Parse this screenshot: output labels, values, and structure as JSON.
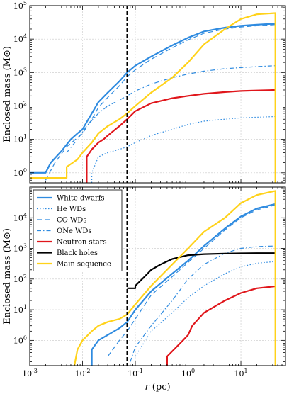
{
  "chart_data": [
    {
      "panel": "top",
      "type": "line",
      "xscale": "log",
      "yscale": "log",
      "xlim": [
        0.001,
        70
      ],
      "ylim": [
        0.5,
        100000
      ],
      "ylabel": "Enclosed mass (M⊙)",
      "xlabel": "",
      "grid": true,
      "legend": "none",
      "vline_x": 0.07,
      "yticks": [
        {
          "value": 1,
          "label": "10^0"
        },
        {
          "value": 10,
          "label": "10^1"
        },
        {
          "value": 100,
          "label": "10^2"
        },
        {
          "value": 1000,
          "label": "10^3"
        },
        {
          "value": 10000,
          "label": "10^4"
        },
        {
          "value": 100000,
          "label": "10^5"
        }
      ],
      "series": [
        {
          "id": "wd",
          "color": "#2f8be0",
          "dash": "solid",
          "width": 2.2,
          "drop": false,
          "points": [
            [
              0.001,
              1.0
            ],
            [
              0.002,
              1.0
            ],
            [
              0.0025,
              2.0
            ],
            [
              0.004,
              4.5
            ],
            [
              0.006,
              10
            ],
            [
              0.008,
              15
            ],
            [
              0.01,
              20
            ],
            [
              0.015,
              60
            ],
            [
              0.02,
              130
            ],
            [
              0.03,
              250
            ],
            [
              0.05,
              550
            ],
            [
              0.07,
              1000
            ],
            [
              0.1,
              1600
            ],
            [
              0.2,
              3000
            ],
            [
              0.5,
              6500
            ],
            [
              1,
              11000
            ],
            [
              2,
              17000
            ],
            [
              5,
              22000
            ],
            [
              10,
              25000
            ],
            [
              20,
              27000
            ],
            [
              45,
              29000
            ]
          ]
        },
        {
          "id": "co",
          "color": "#2f8be0",
          "dash": "7,4",
          "width": 1.2,
          "drop": false,
          "points": [
            [
              0.002,
              0.6
            ],
            [
              0.003,
              2.0
            ],
            [
              0.005,
              6
            ],
            [
              0.01,
              15
            ],
            [
              0.015,
              40
            ],
            [
              0.02,
              90
            ],
            [
              0.03,
              180
            ],
            [
              0.05,
              400
            ],
            [
              0.07,
              750
            ],
            [
              0.1,
              1200
            ],
            [
              0.2,
              2500
            ],
            [
              0.5,
              5500
            ],
            [
              1,
              9500
            ],
            [
              2,
              15000
            ],
            [
              5,
              20000
            ],
            [
              10,
              23000
            ],
            [
              20,
              25000
            ],
            [
              45,
              27000
            ]
          ]
        },
        {
          "id": "one",
          "color": "#2f8be0",
          "dash": "6,3,1.5,3",
          "width": 1.2,
          "drop": false,
          "points": [
            [
              0.005,
              4
            ],
            [
              0.008,
              10
            ],
            [
              0.012,
              25
            ],
            [
              0.02,
              60
            ],
            [
              0.03,
              100
            ],
            [
              0.05,
              150
            ],
            [
              0.07,
              200
            ],
            [
              0.1,
              280
            ],
            [
              0.2,
              450
            ],
            [
              0.5,
              700
            ],
            [
              1,
              900
            ],
            [
              2,
              1100
            ],
            [
              5,
              1300
            ],
            [
              10,
              1400
            ],
            [
              20,
              1500
            ],
            [
              45,
              1600
            ]
          ]
        },
        {
          "id": "he",
          "color": "#2f8be0",
          "dash": "1.5,2.5",
          "width": 1.2,
          "drop": false,
          "points": [
            [
              0.015,
              0.5
            ],
            [
              0.015,
              1
            ],
            [
              0.02,
              3
            ],
            [
              0.03,
              4
            ],
            [
              0.05,
              5
            ],
            [
              0.07,
              6
            ],
            [
              0.1,
              8
            ],
            [
              0.2,
              13
            ],
            [
              0.5,
              20
            ],
            [
              1,
              28
            ],
            [
              2,
              35
            ],
            [
              5,
              40
            ],
            [
              10,
              44
            ],
            [
              20,
              46
            ],
            [
              45,
              48
            ]
          ]
        },
        {
          "id": "ns",
          "color": "#e0161b",
          "dash": "solid",
          "width": 2.2,
          "drop": false,
          "points": [
            [
              0.012,
              0.5
            ],
            [
              0.012,
              3
            ],
            [
              0.015,
              5
            ],
            [
              0.02,
              8
            ],
            [
              0.025,
              10
            ],
            [
              0.03,
              13
            ],
            [
              0.05,
              25
            ],
            [
              0.07,
              40
            ],
            [
              0.1,
              70
            ],
            [
              0.2,
              120
            ],
            [
              0.5,
              170
            ],
            [
              1,
              200
            ],
            [
              2,
              230
            ],
            [
              5,
              260
            ],
            [
              10,
              280
            ],
            [
              20,
              290
            ],
            [
              45,
              300
            ]
          ]
        },
        {
          "id": "ms",
          "color": "#ffd21a",
          "dash": "solid",
          "width": 2.2,
          "drop": true,
          "points": [
            [
              0.001,
              0.7
            ],
            [
              0.005,
              0.7
            ],
            [
              0.005,
              1.5
            ],
            [
              0.008,
              2.5
            ],
            [
              0.01,
              4
            ],
            [
              0.015,
              8
            ],
            [
              0.02,
              15
            ],
            [
              0.03,
              25
            ],
            [
              0.05,
              40
            ],
            [
              0.07,
              60
            ],
            [
              0.1,
              100
            ],
            [
              0.2,
              250
            ],
            [
              0.5,
              700
            ],
            [
              1,
              2000
            ],
            [
              2,
              7000
            ],
            [
              5,
              20000
            ],
            [
              10,
              40000
            ],
            [
              20,
              55000
            ],
            [
              45,
              60000
            ]
          ]
        }
      ]
    },
    {
      "panel": "bottom",
      "type": "line",
      "xscale": "log",
      "yscale": "log",
      "xlim": [
        0.001,
        70
      ],
      "ylim": [
        0.15,
        100000
      ],
      "ylabel": "Enclosed mass (M⊙)",
      "xlabel": "r (pc)",
      "grid": true,
      "legend": "top-left",
      "vline_x": 0.07,
      "yticks": [
        {
          "value": 1,
          "label": "10^0"
        },
        {
          "value": 10,
          "label": "10^1"
        },
        {
          "value": 100,
          "label": "10^2"
        },
        {
          "value": 1000,
          "label": "10^3"
        },
        {
          "value": 10000,
          "label": "10^4"
        }
      ],
      "xticks": [
        {
          "value": 0.001,
          "label": "10^-3"
        },
        {
          "value": 0.01,
          "label": "10^-2"
        },
        {
          "value": 0.1,
          "label": "10^-1"
        },
        {
          "value": 1,
          "label": "10^0"
        },
        {
          "value": 10,
          "label": "10^1"
        }
      ],
      "series": [
        {
          "id": "wd",
          "name": "White dwarfs",
          "color": "#2f8be0",
          "dash": "solid",
          "width": 2.2,
          "drop": false,
          "points": [
            [
              0.015,
              0.15
            ],
            [
              0.015,
              0.5
            ],
            [
              0.02,
              1.0
            ],
            [
              0.03,
              1.5
            ],
            [
              0.05,
              2.5
            ],
            [
              0.07,
              4
            ],
            [
              0.1,
              10
            ],
            [
              0.2,
              40
            ],
            [
              0.5,
              150
            ],
            [
              1,
              400
            ],
            [
              2,
              1200
            ],
            [
              5,
              4500
            ],
            [
              10,
              11000
            ],
            [
              20,
              20000
            ],
            [
              45,
              28000
            ]
          ]
        },
        {
          "id": "he",
          "name": "He WDs",
          "color": "#2f8be0",
          "dash": "1.5,2.5",
          "width": 1.2,
          "drop": false,
          "points": [
            [
              0.1,
              0.3
            ],
            [
              0.2,
              2
            ],
            [
              0.5,
              8
            ],
            [
              1,
              25
            ],
            [
              2,
              60
            ],
            [
              5,
              150
            ],
            [
              10,
              250
            ],
            [
              20,
              330
            ],
            [
              45,
              370
            ]
          ]
        },
        {
          "id": "co",
          "name": "CO WDs",
          "color": "#2f8be0",
          "dash": "7,4",
          "width": 1.2,
          "drop": false,
          "points": [
            [
              0.03,
              0.3
            ],
            [
              0.05,
              1
            ],
            [
              0.07,
              2
            ],
            [
              0.1,
              5
            ],
            [
              0.2,
              30
            ],
            [
              0.5,
              120
            ],
            [
              1,
              350
            ],
            [
              2,
              1000
            ],
            [
              5,
              4000
            ],
            [
              10,
              10000
            ],
            [
              20,
              18000
            ],
            [
              45,
              26000
            ]
          ]
        },
        {
          "id": "one",
          "name": "ONe WDs",
          "color": "#2f8be0",
          "dash": "6,3,1.5,3",
          "width": 1.2,
          "drop": false,
          "points": [
            [
              0.08,
              0.2
            ],
            [
              0.1,
              0.6
            ],
            [
              0.2,
              3
            ],
            [
              0.5,
              20
            ],
            [
              1,
              100
            ],
            [
              2,
              300
            ],
            [
              5,
              700
            ],
            [
              10,
              1000
            ],
            [
              20,
              1150
            ],
            [
              45,
              1200
            ]
          ]
        },
        {
          "id": "ns",
          "name": "Neutron stars",
          "color": "#e0161b",
          "dash": "solid",
          "width": 2.2,
          "drop": false,
          "points": [
            [
              0.4,
              0.15
            ],
            [
              0.4,
              0.3
            ],
            [
              0.8,
              1
            ],
            [
              1,
              1.5
            ],
            [
              1.2,
              3
            ],
            [
              2,
              8
            ],
            [
              5,
              20
            ],
            [
              10,
              35
            ],
            [
              20,
              50
            ],
            [
              45,
              58
            ]
          ]
        },
        {
          "id": "bh",
          "name": "Black holes",
          "color": "#000000",
          "dash": "solid",
          "width": 2.2,
          "drop": false,
          "points": [
            [
              0.07,
              50
            ],
            [
              0.1,
              50
            ],
            [
              0.1,
              60
            ],
            [
              0.15,
              120
            ],
            [
              0.2,
              200
            ],
            [
              0.3,
              300
            ],
            [
              0.5,
              450
            ],
            [
              1,
              600
            ],
            [
              2,
              650
            ],
            [
              5,
              680
            ],
            [
              10,
              690
            ],
            [
              20,
              700
            ],
            [
              45,
              700
            ]
          ]
        },
        {
          "id": "ms",
          "name": "Main sequence",
          "color": "#ffd21a",
          "dash": "solid",
          "width": 2.2,
          "drop": true,
          "points": [
            [
              0.007,
              0.15
            ],
            [
              0.008,
              0.5
            ],
            [
              0.01,
              1
            ],
            [
              0.015,
              2
            ],
            [
              0.02,
              3
            ],
            [
              0.03,
              4
            ],
            [
              0.05,
              5
            ],
            [
              0.07,
              7
            ],
            [
              0.1,
              15
            ],
            [
              0.2,
              60
            ],
            [
              0.5,
              300
            ],
            [
              1,
              1000
            ],
            [
              2,
              3500
            ],
            [
              5,
              10000
            ],
            [
              10,
              30000
            ],
            [
              20,
              55000
            ],
            [
              45,
              75000
            ]
          ]
        }
      ]
    }
  ]
}
